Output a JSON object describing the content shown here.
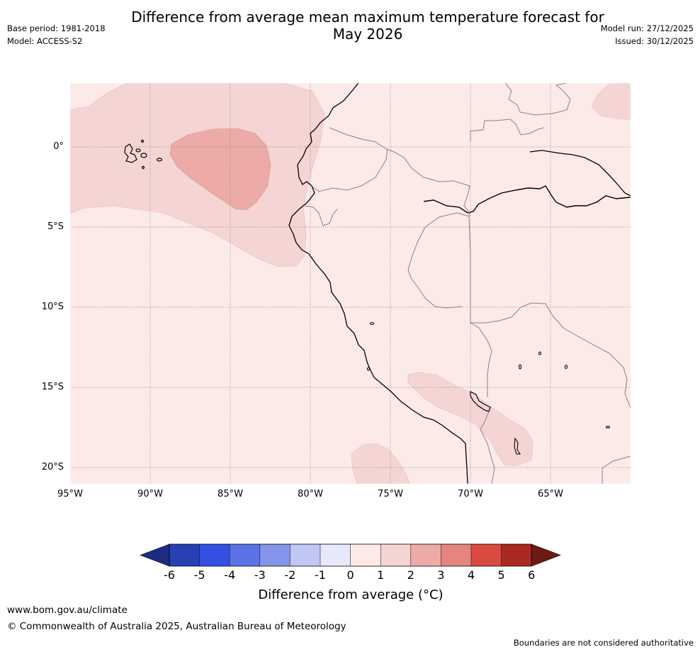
{
  "header": {
    "title_line1": "Difference from average mean maximum temperature forecast for",
    "title_line2": "May 2026",
    "base_period": "Base period: 1981-2018",
    "model": "Model: ACCESS-S2",
    "model_run": "Model run: 27/12/2025",
    "issued": "Issued: 30/12/2025"
  },
  "map": {
    "lat_labels": [
      "0°",
      "5°S",
      "10°S",
      "15°S",
      "20°S"
    ],
    "lon_labels": [
      "95°W",
      "90°W",
      "85°W",
      "80°W",
      "75°W",
      "70°W",
      "65°W"
    ],
    "background_color": "#fbeae8",
    "anomaly_colors": {
      "band_1_2": "#f5d5d3",
      "band_2_3": "#ecaba7"
    }
  },
  "colorbar": {
    "ticks": [
      "-6",
      "-5",
      "-4",
      "-3",
      "-2",
      "-1",
      "0",
      "1",
      "2",
      "3",
      "4",
      "5",
      "6"
    ],
    "colors": [
      "#1c2c80",
      "#2740b3",
      "#3450e2",
      "#5b73e6",
      "#8494ea",
      "#c0c7f4",
      "#e7e9fa",
      "#fbeae8",
      "#f5d5d3",
      "#ecaba7",
      "#e5857d",
      "#da4b3f",
      "#aa2a22",
      "#6e1a14"
    ],
    "label": "Difference from average (°C)"
  },
  "footer": {
    "url": "www.bom.gov.au/climate",
    "copyright": "© Commonwealth of Australia 2025, Australian Bureau of Meteorology",
    "disclaimer": "Boundaries are not considered authoritative"
  }
}
